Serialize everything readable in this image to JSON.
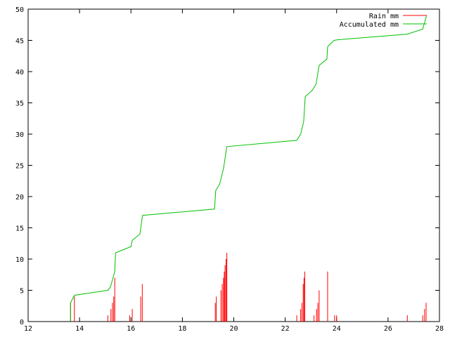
{
  "chart_data": {
    "type": "bar+line",
    "title": "",
    "xlabel": "",
    "ylabel": "",
    "xlim": [
      12,
      28
    ],
    "ylim": [
      0,
      50
    ],
    "xticks": [
      12,
      14,
      16,
      18,
      20,
      22,
      24,
      26,
      28
    ],
    "yticks": [
      0,
      5,
      10,
      15,
      20,
      25,
      30,
      35,
      40,
      45,
      50
    ],
    "grid": false,
    "legend_position": "top-right",
    "series": [
      {
        "name": "Rain mm",
        "kind": "impulses",
        "color": "#ff0000",
        "points": [
          [
            13.65,
            3
          ],
          [
            13.8,
            4
          ],
          [
            15.1,
            1
          ],
          [
            15.22,
            2
          ],
          [
            15.28,
            3
          ],
          [
            15.33,
            4
          ],
          [
            15.37,
            7
          ],
          [
            15.95,
            1
          ],
          [
            16.05,
            2
          ],
          [
            16.38,
            4
          ],
          [
            16.44,
            6
          ],
          [
            19.28,
            3
          ],
          [
            19.32,
            4
          ],
          [
            19.5,
            5
          ],
          [
            19.55,
            6
          ],
          [
            19.6,
            7
          ],
          [
            19.63,
            8
          ],
          [
            19.66,
            9
          ],
          [
            19.7,
            10
          ],
          [
            19.73,
            11
          ],
          [
            22.45,
            1
          ],
          [
            22.6,
            2
          ],
          [
            22.65,
            3
          ],
          [
            22.7,
            6
          ],
          [
            22.73,
            7
          ],
          [
            22.76,
            8
          ],
          [
            23.12,
            1
          ],
          [
            23.22,
            2
          ],
          [
            23.27,
            3
          ],
          [
            23.32,
            5
          ],
          [
            23.65,
            8
          ],
          [
            23.92,
            1
          ],
          [
            24.0,
            1
          ],
          [
            26.75,
            1
          ],
          [
            27.35,
            1
          ],
          [
            27.42,
            2
          ],
          [
            27.48,
            3
          ]
        ]
      },
      {
        "name": "Accumulated mm",
        "kind": "line",
        "color": "#00c000",
        "points": [
          [
            13.65,
            0
          ],
          [
            13.65,
            3
          ],
          [
            13.8,
            4.2
          ],
          [
            15.1,
            5
          ],
          [
            15.2,
            5.5
          ],
          [
            15.3,
            7
          ],
          [
            15.37,
            8
          ],
          [
            15.4,
            11
          ],
          [
            16.0,
            12
          ],
          [
            16.05,
            13
          ],
          [
            16.35,
            14
          ],
          [
            16.45,
            17
          ],
          [
            19.25,
            18
          ],
          [
            19.3,
            21
          ],
          [
            19.45,
            22
          ],
          [
            19.6,
            24.5
          ],
          [
            19.73,
            28
          ],
          [
            22.45,
            29
          ],
          [
            22.6,
            30
          ],
          [
            22.72,
            32
          ],
          [
            22.78,
            36
          ],
          [
            23.05,
            37
          ],
          [
            23.2,
            38
          ],
          [
            23.32,
            41
          ],
          [
            23.62,
            42
          ],
          [
            23.65,
            44
          ],
          [
            23.9,
            45
          ],
          [
            24.05,
            45.1
          ],
          [
            26.75,
            46
          ],
          [
            27.35,
            46.8
          ],
          [
            27.5,
            49
          ]
        ]
      }
    ]
  }
}
